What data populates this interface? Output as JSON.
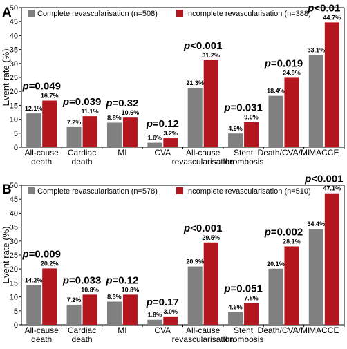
{
  "chart_data": [
    {
      "panel_label": "A",
      "type": "bar",
      "ylabel": "Event rate (%)",
      "ylim": [
        0,
        50
      ],
      "yticks": [
        0,
        5,
        10,
        15,
        20,
        25,
        30,
        35,
        40,
        45,
        50
      ],
      "grid": false,
      "legend_position": "top-left",
      "categories": [
        "All-cause death",
        "Cardiac death",
        "MI",
        "CVA",
        "All-cause revascularisation",
        "Stent thrombosis",
        "Death/CVA/MI",
        "MACCE"
      ],
      "series": [
        {
          "name": "Complete revascularisation (n=508)",
          "color": "#808080",
          "values": [
            12.1,
            7.2,
            8.8,
            1.6,
            21.3,
            4.9,
            18.4,
            33.1
          ]
        },
        {
          "name": "Incomplete revascularisation (n=388)",
          "color": "#b3161e",
          "values": [
            16.7,
            11.1,
            10.6,
            3.2,
            31.2,
            9.0,
            24.9,
            44.7
          ]
        }
      ],
      "value_labels": [
        [
          "12.1%",
          "7.2%",
          "8.8%",
          "1.6%",
          "21.3%",
          "4.9%",
          "18.4%",
          "33.1%"
        ],
        [
          "16.7%",
          "11.1%",
          "10.6%",
          "3.2%",
          "31.2%",
          "9.0%",
          "24.9%",
          "44.7%"
        ]
      ],
      "p_values": [
        "=0.049",
        "=0.039",
        "=0.32",
        "=0.12",
        "<0.001",
        "=0.031",
        "=0.019",
        "<0.01"
      ]
    },
    {
      "panel_label": "B",
      "type": "bar",
      "ylabel": "Event rate (%)",
      "ylim": [
        0,
        50
      ],
      "yticks": [
        0,
        5,
        10,
        15,
        20,
        25,
        30,
        35,
        40,
        45,
        50
      ],
      "grid": false,
      "legend_position": "top-left",
      "categories": [
        "All-cause death",
        "Cardiac death",
        "MI",
        "CVA",
        "All-cause revascularisation",
        "Stent thrombosis",
        "Death/CVA/MI",
        "MACCE"
      ],
      "series": [
        {
          "name": "Complete revascularisation (n=578)",
          "color": "#808080",
          "values": [
            14.2,
            7.2,
            8.3,
            1.8,
            20.9,
            4.6,
            20.1,
            34.4
          ]
        },
        {
          "name": "Incomplete revascularisation (n=510)",
          "color": "#b3161e",
          "values": [
            20.2,
            10.8,
            10.8,
            3.0,
            29.5,
            7.8,
            28.1,
            47.1
          ]
        }
      ],
      "value_labels": [
        [
          "14.2%",
          "7.2%",
          "8.3%",
          "1.8%",
          "20.9%",
          "4.6%",
          "20.1%",
          "34.4%"
        ],
        [
          "20.2%",
          "10.8%",
          "10.8%",
          "3.0%",
          "29.5%",
          "7.8%",
          "28.1%",
          "47.1%"
        ]
      ],
      "p_values": [
        "=0.009",
        "=0.033",
        "=0.12",
        "=0.17",
        "<0.001",
        "=0.051",
        "=0.002",
        "<0.001"
      ]
    }
  ]
}
